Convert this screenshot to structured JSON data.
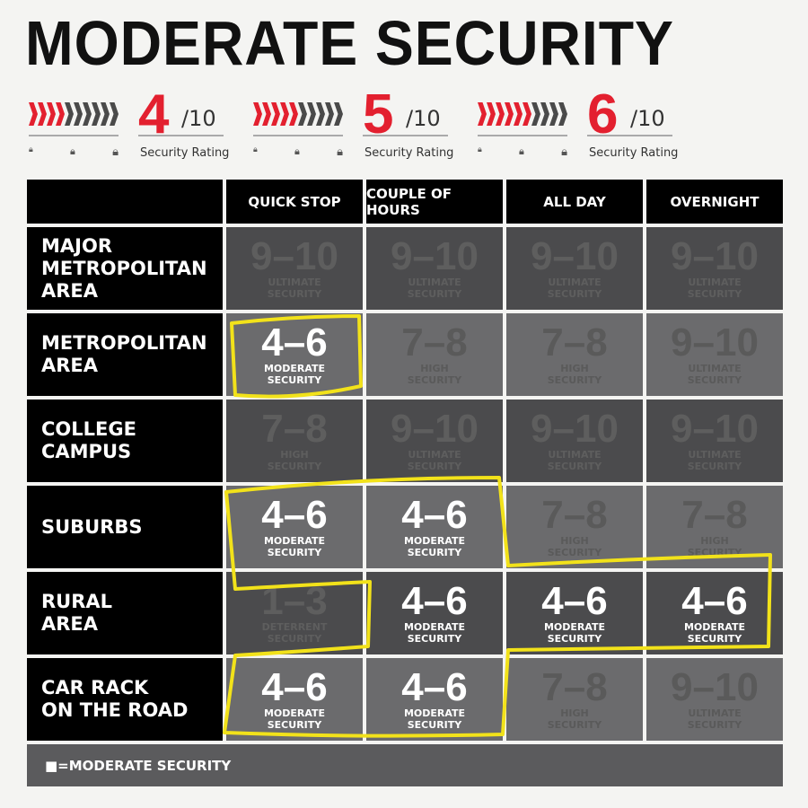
{
  "title": "MODERATE SECURITY",
  "ratings": [
    {
      "value": "4",
      "denominator": "/10",
      "label": "Security Rating",
      "filled": 4
    },
    {
      "value": "5",
      "denominator": "/10",
      "label": "Security Rating",
      "filled": 5
    },
    {
      "value": "6",
      "denominator": "/10",
      "label": "Security Rating",
      "filled": 6
    }
  ],
  "colors": {
    "accent": "#e3202f",
    "highlight": "#f2e21a"
  },
  "columns": [
    "QUICK STOP",
    "COUPLE OF HOURS",
    "ALL DAY",
    "OVERNIGHT"
  ],
  "rows": [
    {
      "label": "MAJOR\nMETROPOLITAN\nAREA",
      "cells": [
        {
          "range": "9–10",
          "level": "ULTIMATE\nSECURITY"
        },
        {
          "range": "9–10",
          "level": "ULTIMATE\nSECURITY"
        },
        {
          "range": "9–10",
          "level": "ULTIMATE\nSECURITY"
        },
        {
          "range": "9–10",
          "level": "ULTIMATE\nSECURITY"
        }
      ]
    },
    {
      "label": "METROPOLITAN\nAREA",
      "cells": [
        {
          "range": "4–6",
          "level": "MODERATE\nSECURITY",
          "highlighted": true
        },
        {
          "range": "7–8",
          "level": "HIGH\nSECURITY"
        },
        {
          "range": "7–8",
          "level": "HIGH\nSECURITY"
        },
        {
          "range": "9–10",
          "level": "ULTIMATE\nSECURITY"
        }
      ]
    },
    {
      "label": "COLLEGE\nCAMPUS",
      "cells": [
        {
          "range": "7–8",
          "level": "HIGH\nSECURITY"
        },
        {
          "range": "9–10",
          "level": "ULTIMATE\nSECURITY"
        },
        {
          "range": "9–10",
          "level": "ULTIMATE\nSECURITY"
        },
        {
          "range": "9–10",
          "level": "ULTIMATE\nSECURITY"
        }
      ]
    },
    {
      "label": "SUBURBS",
      "cells": [
        {
          "range": "4–6",
          "level": "MODERATE\nSECURITY",
          "highlighted": true
        },
        {
          "range": "4–6",
          "level": "MODERATE\nSECURITY",
          "highlighted": true
        },
        {
          "range": "7–8",
          "level": "HIGH\nSECURITY"
        },
        {
          "range": "7–8",
          "level": "HIGH\nSECURITY"
        }
      ]
    },
    {
      "label": "RURAL\nAREA",
      "cells": [
        {
          "range": "1–3",
          "level": "DETERRENT\nSECURITY"
        },
        {
          "range": "4–6",
          "level": "MODERATE\nSECURITY",
          "highlighted": true
        },
        {
          "range": "4–6",
          "level": "MODERATE\nSECURITY",
          "highlighted": true
        },
        {
          "range": "4–6",
          "level": "MODERATE\nSECURITY",
          "highlighted": true
        }
      ]
    },
    {
      "label": "CAR RACK\nON THE ROAD",
      "cells": [
        {
          "range": "4–6",
          "level": "MODERATE\nSECURITY",
          "highlighted": true
        },
        {
          "range": "4–6",
          "level": "MODERATE\nSECURITY",
          "highlighted": true
        },
        {
          "range": "7–8",
          "level": "HIGH\nSECURITY"
        },
        {
          "range": "9–10",
          "level": "ULTIMATE\nSECURITY"
        }
      ]
    }
  ],
  "legend": "■=MODERATE SECURITY"
}
